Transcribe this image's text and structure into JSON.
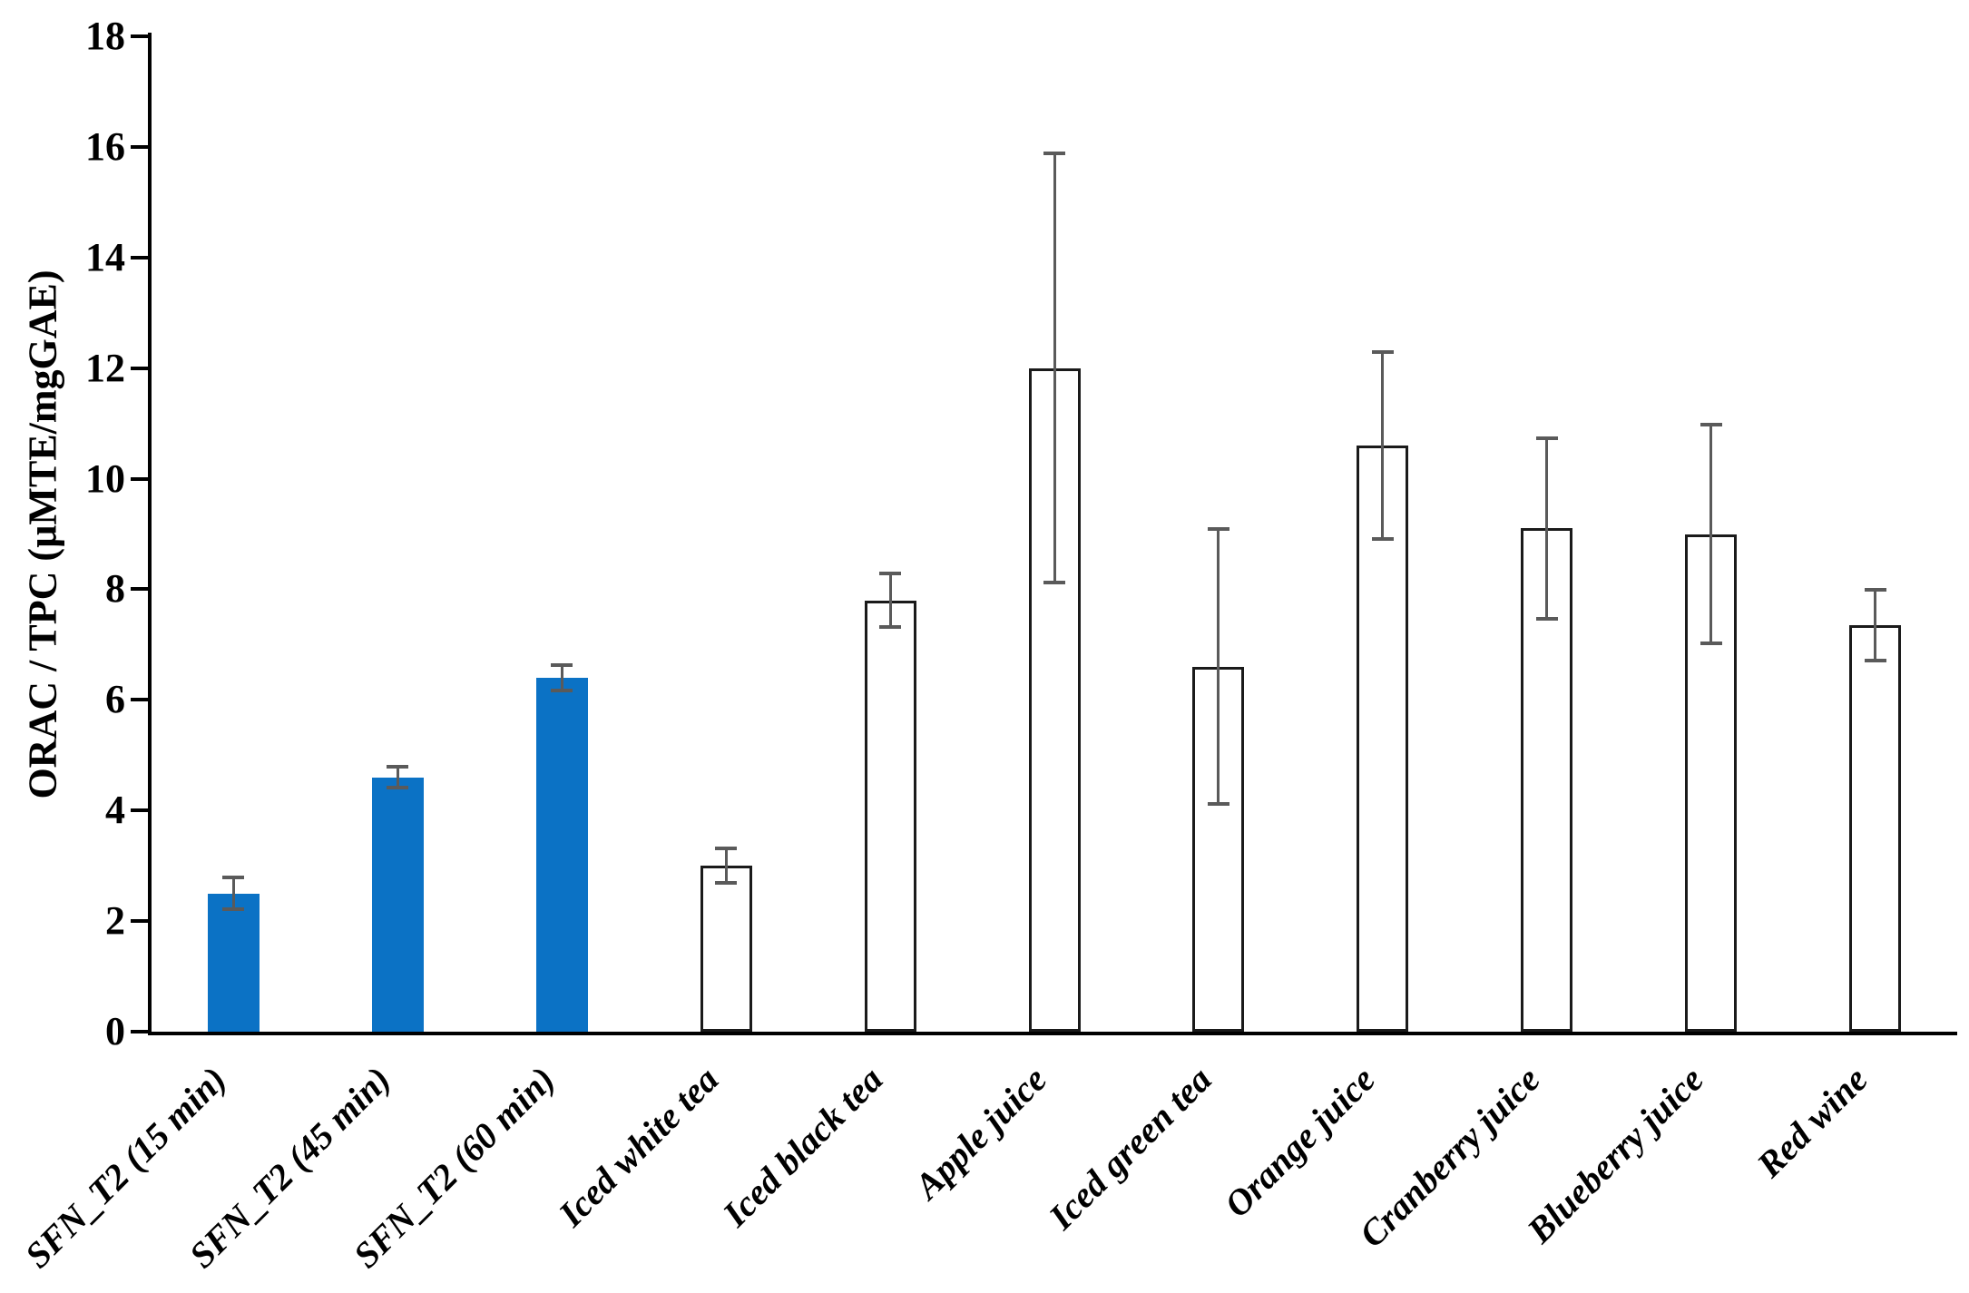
{
  "chart_data": {
    "type": "bar",
    "title": "",
    "xlabel": "",
    "ylabel": "ORAC / TPC (µMTE/mgGAE)",
    "ylim": [
      0,
      18
    ],
    "ytick_step": 2,
    "yticks": [
      0,
      2,
      4,
      6,
      8,
      10,
      12,
      14,
      16,
      18
    ],
    "grid": false,
    "legend_position": "none",
    "categories": [
      "SFN_T2 (15 min)",
      "SFN_T2 (45 min)",
      "SFN_T2 (60 min)",
      "Iced white tea",
      "Iced black tea",
      "Apple juice",
      "Iced green tea",
      "Orange juice",
      "Cranberry juice",
      "Blueberry juice",
      "Red wine"
    ],
    "series": [
      {
        "name": "ORAC / TPC",
        "values": [
          2.5,
          4.6,
          6.4,
          3.0,
          7.8,
          12.0,
          6.6,
          10.6,
          9.1,
          9.0,
          7.35
        ],
        "errors": [
          0.3,
          0.2,
          0.25,
          0.33,
          0.5,
          3.9,
          2.5,
          1.7,
          1.65,
          2.0,
          0.65
        ],
        "bar_styles": [
          "filled",
          "filled",
          "filled",
          "outline",
          "outline",
          "outline",
          "outline",
          "outline",
          "outline",
          "outline",
          "outline"
        ]
      }
    ],
    "colors": {
      "filled_bar": "#0b72c5",
      "outline_bar_fill": "#ffffff",
      "outline_bar_border": "#1a1a1a",
      "error_bar": "#5a5a5a",
      "axis": "#000000",
      "text": "#000000"
    }
  }
}
